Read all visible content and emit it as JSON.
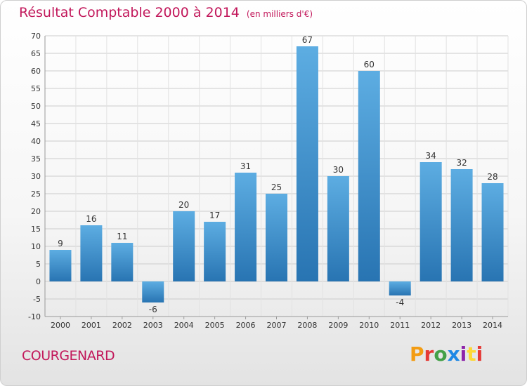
{
  "header": {
    "title": "Résultat Comptable 2000 à 2014",
    "subtitle": "(en milliers d'€)"
  },
  "footer": {
    "commune": "COURGENARD",
    "logo": "Proxiti",
    "logo_colors": [
      "#f39c12",
      "#e53935",
      "#43a047",
      "#1e88e5",
      "#8e24aa",
      "#fdd835",
      "#e53935"
    ]
  },
  "colors": {
    "bar_light": "#5dade2",
    "bar_dark": "#2874b2",
    "grid": "#cccccc",
    "axis_text": "#333333"
  },
  "chart_data": {
    "type": "bar",
    "title": "Résultat Comptable 2000 à 2014",
    "subtitle": "(en milliers d'€)",
    "categories": [
      "2000",
      "2001",
      "2002",
      "2003",
      "2004",
      "2005",
      "2006",
      "2007",
      "2008",
      "2009",
      "2010",
      "2011",
      "2012",
      "2013",
      "2014"
    ],
    "values": [
      9,
      16,
      11,
      -6,
      20,
      17,
      31,
      25,
      67,
      30,
      60,
      -4,
      34,
      32,
      28
    ],
    "ylim": [
      -10,
      70
    ],
    "yticks": [
      -10,
      -5,
      0,
      5,
      10,
      15,
      20,
      25,
      30,
      35,
      40,
      45,
      50,
      55,
      60,
      65,
      70
    ],
    "grid": true,
    "xlabel": "",
    "ylabel": ""
  }
}
